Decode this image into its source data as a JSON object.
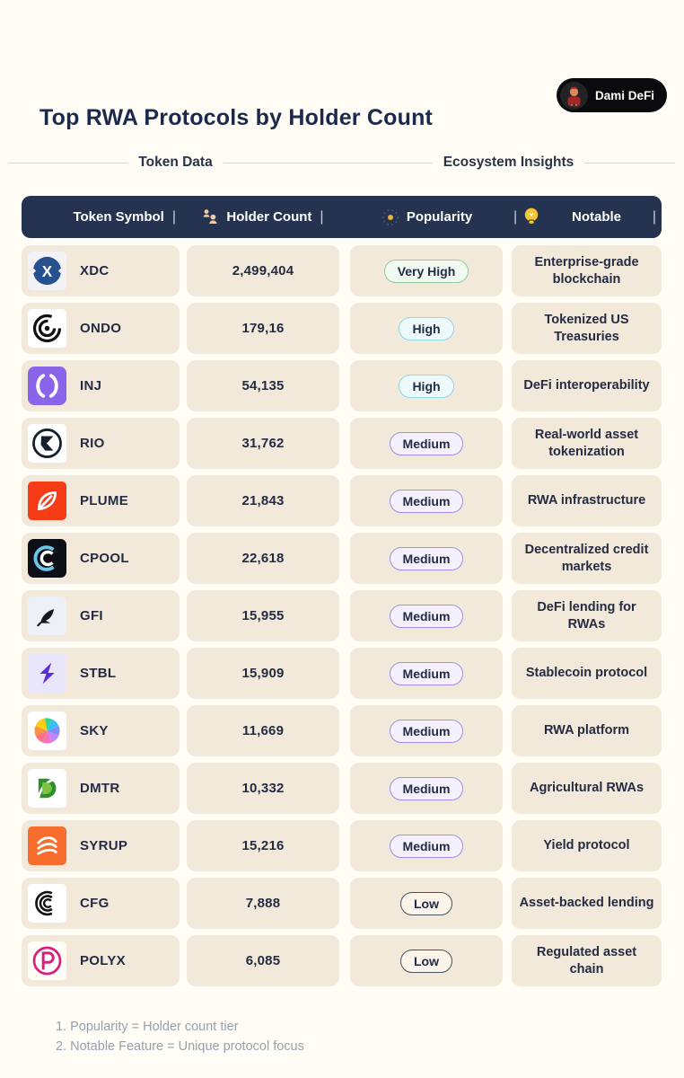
{
  "page": {
    "title": "Top RWA Protocols by Holder Count",
    "author": "Dami DeFi"
  },
  "sections": {
    "left_label": "Token Data",
    "right_label": "Ecosystem Insights"
  },
  "header": {
    "columns": [
      "Token Symbol",
      "Holder Count",
      "Popularity",
      "Notable"
    ],
    "divider_glyph": "|",
    "icons": {
      "holder_count": "people-icon",
      "popularity": "sparkle-icon",
      "notable": "lightbulb-icon"
    }
  },
  "colors": {
    "background": "#fffdf5",
    "cell": "#f2e9da",
    "header_navy": "#263350",
    "title_navy": "#1b2a4c"
  },
  "badge_colors": {
    "Very High": {
      "border": "#95ca9b",
      "background": "#f1faf0"
    },
    "High": {
      "border": "#8fd7e3",
      "background": "#eefbfc"
    },
    "Medium": {
      "border": "#9f8cec",
      "background": "#f4f1fd"
    },
    "Low": {
      "border": "#49525f",
      "background": "#faf4ea"
    }
  },
  "table": {
    "rows": [
      {
        "symbol": "XDC",
        "logo": "xdc-logo",
        "holders": "2,499,404",
        "popularity": "Very High",
        "notable": "Enterprise-grade blockchain"
      },
      {
        "symbol": "ONDO",
        "logo": "ondo-logo",
        "holders": "179,16",
        "popularity": "High",
        "notable": "Tokenized US Treasuries"
      },
      {
        "symbol": "INJ",
        "logo": "inj-logo",
        "holders": "54,135",
        "popularity": "High",
        "notable": "DeFi interoperability"
      },
      {
        "symbol": "RIO",
        "logo": "rio-logo",
        "holders": "31,762",
        "popularity": "Medium",
        "notable": "Real-world asset tokenization"
      },
      {
        "symbol": "PLUME",
        "logo": "plume-logo",
        "holders": "21,843",
        "popularity": "Medium",
        "notable": "RWA infrastructure"
      },
      {
        "symbol": "CPOOL",
        "logo": "cpool-logo",
        "holders": "22,618",
        "popularity": "Medium",
        "notable": "Decentralized credit markets"
      },
      {
        "symbol": "GFI",
        "logo": "gfi-logo",
        "holders": "15,955",
        "popularity": "Medium",
        "notable": "DeFi lending for RWAs"
      },
      {
        "symbol": "STBL",
        "logo": "stbl-logo",
        "holders": "15,909",
        "popularity": "Medium",
        "notable": "Stablecoin protocol"
      },
      {
        "symbol": "SKY",
        "logo": "sky-logo",
        "holders": "11,669",
        "popularity": "Medium",
        "notable": "RWA platform"
      },
      {
        "symbol": "DMTR",
        "logo": "dmtr-logo",
        "holders": "10,332",
        "popularity": "Medium",
        "notable": "Agricultural RWAs"
      },
      {
        "symbol": "SYRUP",
        "logo": "syrup-logo",
        "holders": "15,216",
        "popularity": "Medium",
        "notable": "Yield protocol"
      },
      {
        "symbol": "CFG",
        "logo": "cfg-logo",
        "holders": "7,888",
        "popularity": "Low",
        "notable": "Asset-backed lending"
      },
      {
        "symbol": "POLYX",
        "logo": "polyx-logo",
        "holders": "6,085",
        "popularity": "Low",
        "notable": "Regulated asset chain"
      }
    ]
  },
  "footnotes": [
    "1. Popularity = Holder count tier",
    "2. Notable Feature = Unique protocol focus"
  ]
}
